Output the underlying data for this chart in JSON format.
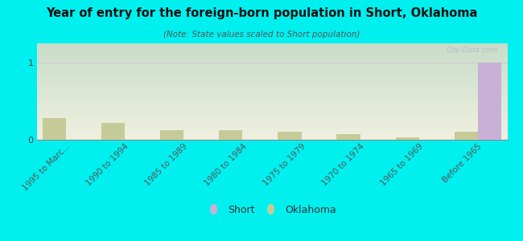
{
  "title": "Year of entry for the foreign-born population in Short, Oklahoma",
  "subtitle": "(Note: State values scaled to Short population)",
  "categories": [
    "1995 to Marc...",
    "1990 to 1994",
    "1985 to 1989",
    "1980 to 1984",
    "1975 to 1979",
    "1970 to 1974",
    "1965 to 1969",
    "Before 1965"
  ],
  "short_values": [
    0,
    0,
    0,
    0,
    0,
    0,
    0,
    1.0
  ],
  "oklahoma_values": [
    0.28,
    0.22,
    0.12,
    0.12,
    0.1,
    0.07,
    0.03,
    0.1
  ],
  "short_color": "#c9b0d6",
  "oklahoma_color": "#c5cb98",
  "background_color": "#00f0f0",
  "plot_bg_color_top": "#c8ddc8",
  "plot_bg_color_bottom": "#f0f0e0",
  "ylim": [
    0,
    1.25
  ],
  "yticks": [
    0,
    1
  ],
  "bar_width": 0.4,
  "watermark": "City-Data.com",
  "legend_short": "Short",
  "legend_oklahoma": "Oklahoma"
}
